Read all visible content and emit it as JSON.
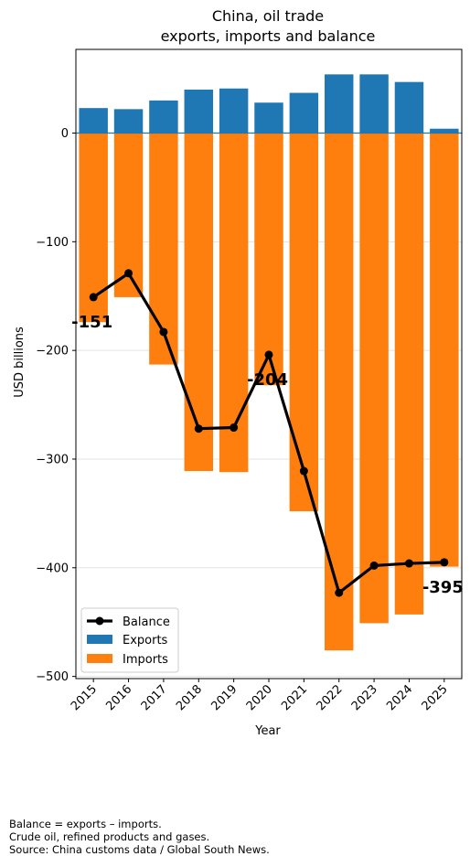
{
  "chart_data": {
    "type": "bar",
    "title": "China, oil trade",
    "subtitle": "exports, imports and balance",
    "xlabel": "Year",
    "ylabel": "USD billions",
    "categories": [
      "2015",
      "2016",
      "2017",
      "2018",
      "2019",
      "2020",
      "2021",
      "2022",
      "2023",
      "2024",
      "2025"
    ],
    "ylim": [
      -502,
      77
    ],
    "yticks": [
      0,
      -100,
      -200,
      -300,
      -400,
      -500
    ],
    "ytick_labels": [
      "0",
      "−100",
      "−200",
      "−300",
      "−400",
      "−500"
    ],
    "grid": "horizontal",
    "zero_line_color": "#1f77b4",
    "series": [
      {
        "name": "Exports",
        "type": "bar",
        "color": "#1f77b4",
        "values": [
          23,
          22,
          30,
          40,
          41,
          28,
          37,
          54,
          54,
          47,
          4
        ]
      },
      {
        "name": "Imports",
        "type": "bar",
        "color": "#ff7f0e",
        "values": [
          -174,
          -151,
          -213,
          -311,
          -312,
          -232,
          -348,
          -476,
          -451,
          -443,
          -399
        ]
      },
      {
        "name": "Balance",
        "type": "line",
        "color": "#000000",
        "marker": "circle",
        "values": [
          -151,
          -129,
          -183,
          -272,
          -271,
          -204,
          -311,
          -423,
          -398,
          -396,
          -395
        ]
      }
    ],
    "annotations": [
      {
        "text": "-151",
        "x": "2015",
        "y": -151
      },
      {
        "text": "-204",
        "x": "2020",
        "y": -204
      },
      {
        "text": "-395",
        "x": "2025",
        "y": -395
      }
    ],
    "legend": {
      "placement": "lower-left",
      "entries": [
        "Balance",
        "Exports",
        "Imports"
      ]
    }
  },
  "footnotes": [
    "Balance = exports – imports.",
    "Crude oil, refined products and gases.",
    "Source: China customs data / Global South News."
  ]
}
